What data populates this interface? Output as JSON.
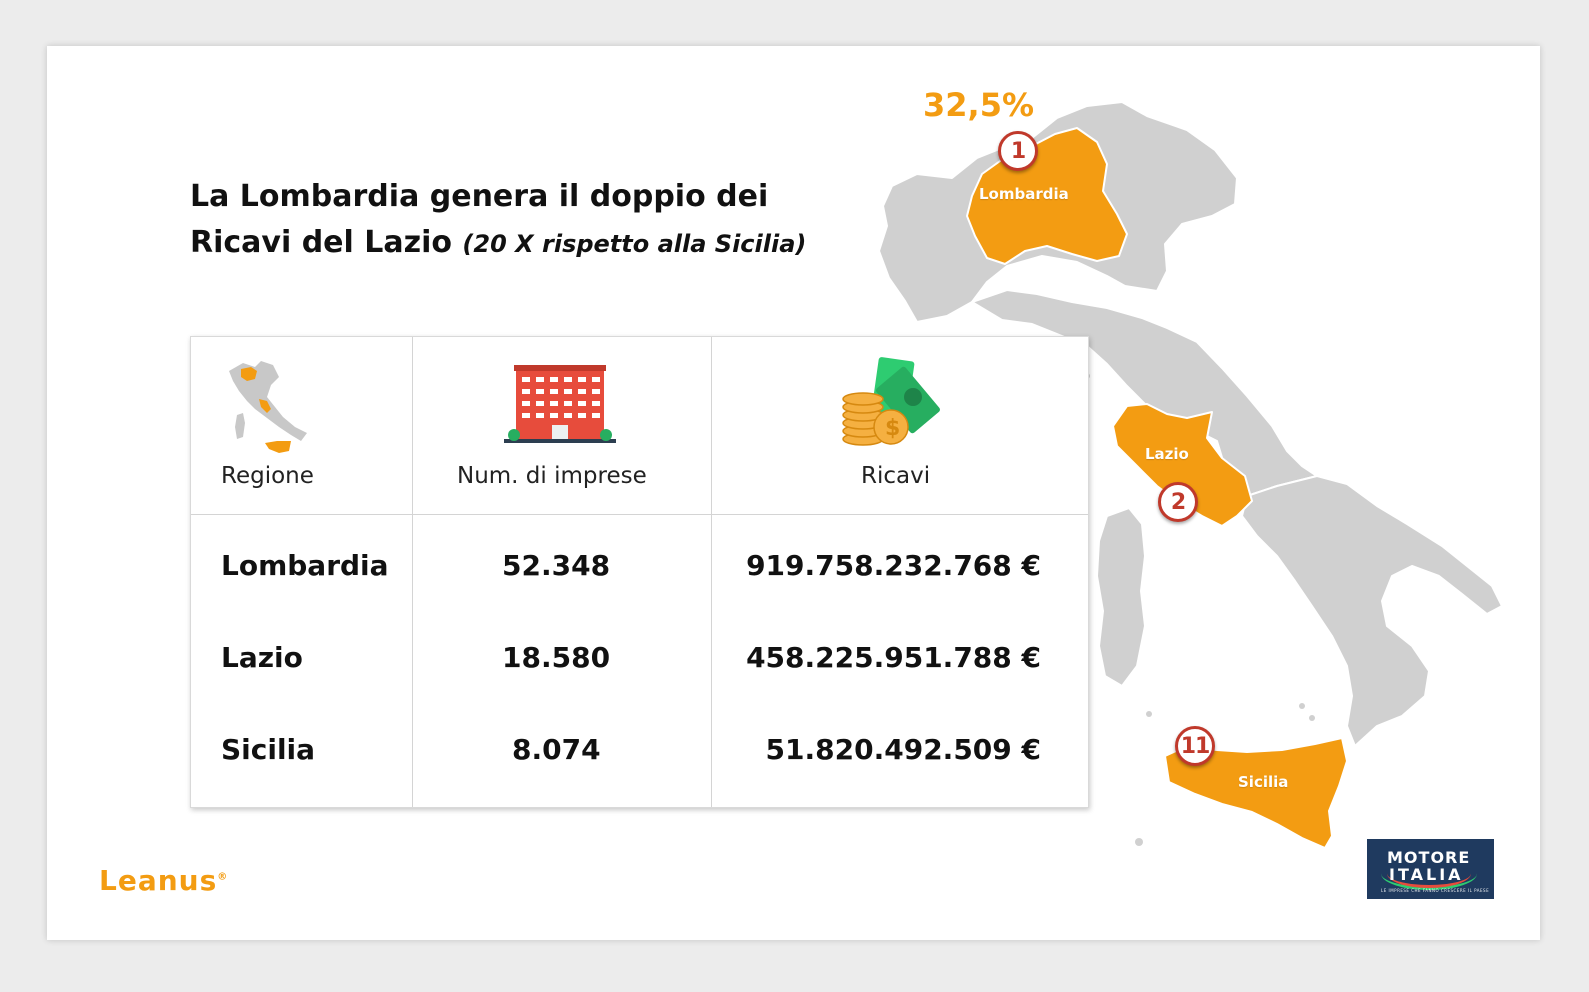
{
  "slide": {
    "title_line1": "La Lombardia genera il doppio dei",
    "title_line2": "Ricavi del Lazio",
    "title_sub": "(20 X rispetto alla Sicilia)"
  },
  "map": {
    "highlight_pct": "32,5%",
    "highlight_color": "#f39c12",
    "base_color": "#d0d0d0",
    "badge_color": "#c0392b",
    "regions": [
      {
        "label": "Lombardia",
        "rank": "1"
      },
      {
        "label": "Lazio",
        "rank": "2"
      },
      {
        "label": "Sicilia",
        "rank": "11"
      }
    ]
  },
  "table": {
    "headers": [
      "Regione",
      "Num. di imprese",
      "Ricavi"
    ],
    "header_icons": [
      "italy-map-icon",
      "office-building-icon",
      "money-coins-icon"
    ],
    "rows": [
      {
        "regione": "Lombardia",
        "imprese": "52.348",
        "ricavi": "919.758.232.768 €"
      },
      {
        "regione": "Lazio",
        "imprese": "18.580",
        "ricavi": "458.225.951.788 €"
      },
      {
        "regione": "Sicilia",
        "imprese": "8.074",
        "ricavi": "51.820.492.509 €"
      }
    ]
  },
  "footer": {
    "brand_left": "Leanus",
    "brand_mark": "®",
    "brand_right_line1": "MOTORE",
    "brand_right_line2": "ITALIA",
    "brand_right_tag": "LE IMPRESE CHE FANNO CRESCERE IL PAESE"
  }
}
